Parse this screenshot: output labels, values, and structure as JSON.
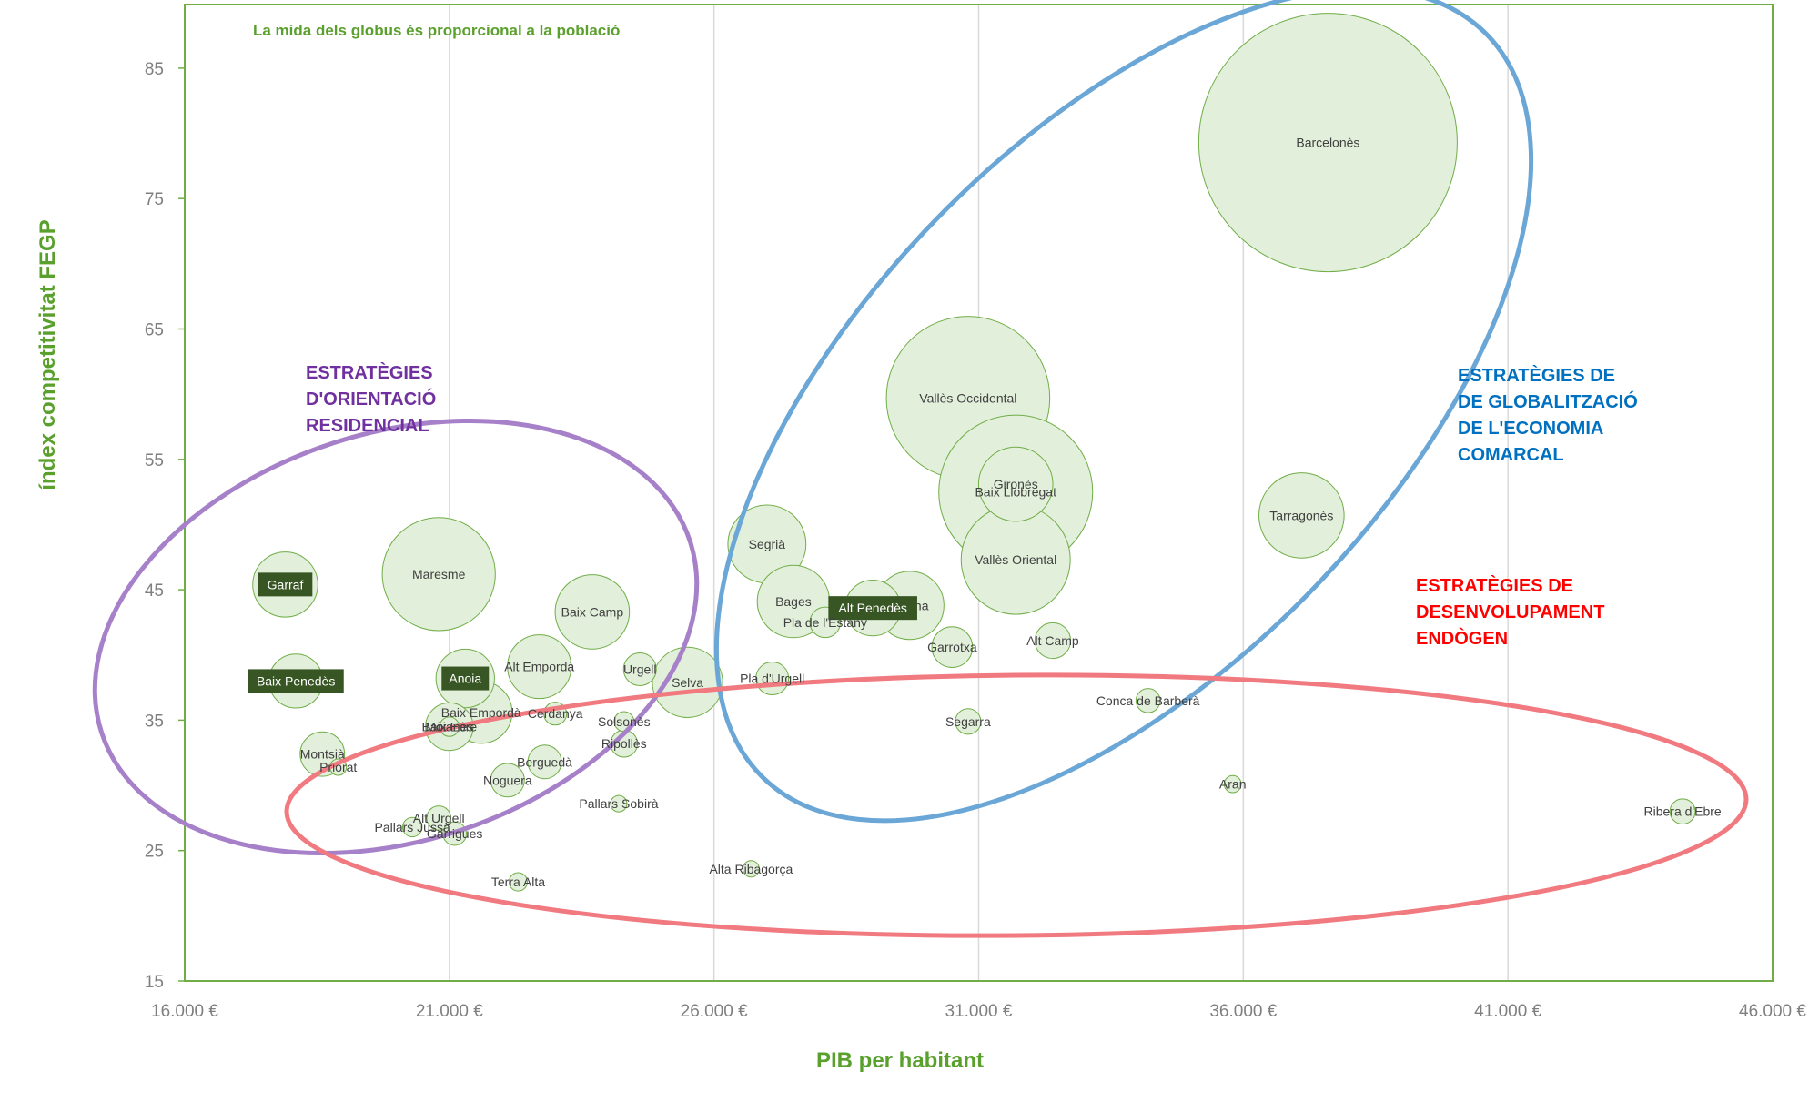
{
  "chart_data": {
    "type": "bubble",
    "note": "La mida dels globus és proporcional a la població",
    "xlabel": "PIB per habitant",
    "ylabel": "índex competitivitat FEGP",
    "xlim": [
      16000,
      46000
    ],
    "ylim": [
      15,
      90
    ],
    "xticks": [
      16000,
      21000,
      26000,
      31000,
      36000,
      41000,
      46000
    ],
    "xtick_labels": [
      "16.000 €",
      "21.000 €",
      "26.000 €",
      "31.000 €",
      "36.000 €",
      "41.000 €",
      "46.000 €"
    ],
    "yticks": [
      15,
      25,
      35,
      45,
      55,
      65,
      75,
      85
    ],
    "ytick_labels": [
      "15",
      "25",
      "35",
      "45",
      "55",
      "65",
      "75",
      "85"
    ],
    "grid": "vertical",
    "colors": {
      "bubble_fill": "#e2efda",
      "bubble_stroke": "#70ad47",
      "highlight_fill": "#375623",
      "axis": "#70ad47",
      "title": "#5aa02c"
    },
    "points": [
      {
        "name": "Barcelonès",
        "x": 37600,
        "y": 79.3,
        "pop": 2300000
      },
      {
        "name": "Vallès Occidental",
        "x": 30800,
        "y": 59.7,
        "pop": 920000
      },
      {
        "name": "Gironès",
        "x": 31700,
        "y": 53.1,
        "pop": 190000
      },
      {
        "name": "Baix Llobregat",
        "x": 31700,
        "y": 52.5,
        "pop": 815000
      },
      {
        "name": "Vallès Oriental",
        "x": 31700,
        "y": 47.3,
        "pop": 410000
      },
      {
        "name": "Tarragonès",
        "x": 37100,
        "y": 50.7,
        "pop": 250000
      },
      {
        "name": "Segrià",
        "x": 27000,
        "y": 48.5,
        "pop": 210000
      },
      {
        "name": "Osona",
        "x": 29700,
        "y": 43.8,
        "pop": 160000
      },
      {
        "name": "Bages",
        "x": 27500,
        "y": 44.1,
        "pop": 180000
      },
      {
        "name": "Alt Penedès",
        "x": 29000,
        "y": 43.6,
        "pop": 107000
      },
      {
        "name": "Pla de l'Estany",
        "x": 28100,
        "y": 42.5,
        "pop": 32000
      },
      {
        "name": "Garrotxa",
        "x": 30500,
        "y": 40.6,
        "pop": 57000
      },
      {
        "name": "Alt Camp",
        "x": 32400,
        "y": 41.1,
        "pop": 44000
      },
      {
        "name": "Pla d'Urgell",
        "x": 27100,
        "y": 38.2,
        "pop": 37000
      },
      {
        "name": "Selva",
        "x": 25500,
        "y": 37.9,
        "pop": 170000
      },
      {
        "name": "Urgell",
        "x": 24600,
        "y": 38.9,
        "pop": 37000
      },
      {
        "name": "Baix Camp",
        "x": 23700,
        "y": 43.3,
        "pop": 190000
      },
      {
        "name": "Alt Empordà",
        "x": 22700,
        "y": 39.1,
        "pop": 140000
      },
      {
        "name": "Garraf",
        "x": 17900,
        "y": 45.4,
        "pop": 146000
      },
      {
        "name": "Maresme",
        "x": 20800,
        "y": 46.2,
        "pop": 440000
      },
      {
        "name": "Baix Penedès",
        "x": 18100,
        "y": 38.0,
        "pop": 100000
      },
      {
        "name": "Anoia",
        "x": 21300,
        "y": 38.2,
        "pop": 118000
      },
      {
        "name": "Baix Empordà",
        "x": 21600,
        "y": 35.6,
        "pop": 132000
      },
      {
        "name": "Baix Ebre",
        "x": 21000,
        "y": 34.5,
        "pop": 78000
      },
      {
        "name": "Cerdanya",
        "x": 23000,
        "y": 35.5,
        "pop": 18000
      },
      {
        "name": "Solsonès",
        "x": 24300,
        "y": 34.9,
        "pop": 13500
      },
      {
        "name": "Ripollès",
        "x": 24300,
        "y": 33.2,
        "pop": 25000
      },
      {
        "name": "Moianès",
        "x": 21000,
        "y": 34.5,
        "pop": 13000
      },
      {
        "name": "Montsià",
        "x": 18600,
        "y": 32.4,
        "pop": 68000
      },
      {
        "name": "Priorat",
        "x": 18900,
        "y": 31.4,
        "pop": 9300
      },
      {
        "name": "Berguedà",
        "x": 22800,
        "y": 31.8,
        "pop": 39000
      },
      {
        "name": "Noguera",
        "x": 22100,
        "y": 30.4,
        "pop": 39000
      },
      {
        "name": "Pallars Sobirà",
        "x": 24200,
        "y": 28.6,
        "pop": 7000
      },
      {
        "name": "Alt Urgell",
        "x": 20800,
        "y": 27.5,
        "pop": 20000
      },
      {
        "name": "Pallars Jussà",
        "x": 20300,
        "y": 26.8,
        "pop": 13000
      },
      {
        "name": "Garrigues",
        "x": 21100,
        "y": 26.3,
        "pop": 19000
      },
      {
        "name": "Terra Alta",
        "x": 22300,
        "y": 22.6,
        "pop": 11500
      },
      {
        "name": "Alta Ribagorça",
        "x": 26700,
        "y": 23.6,
        "pop": 4000
      },
      {
        "name": "Segarra",
        "x": 30800,
        "y": 34.9,
        "pop": 22500
      },
      {
        "name": "Conca de Barberà",
        "x": 34200,
        "y": 36.5,
        "pop": 20000
      },
      {
        "name": "Aran",
        "x": 35800,
        "y": 30.1,
        "pop": 10000
      },
      {
        "name": "Ribera d'Ebre",
        "x": 44300,
        "y": 28.0,
        "pop": 22000
      }
    ],
    "highlighted": [
      "Garraf",
      "Baix Penedès",
      "Anoia",
      "Alt Penedès"
    ],
    "groups": [
      {
        "label": [
          "ESTRATÈGIES",
          "D'ORIENTACIÓ",
          "RESIDENCIAL"
        ],
        "color": "#7030a0",
        "ellipse_color": "#a680c8"
      },
      {
        "label": [
          "ESTRATÈGIES DE",
          "DE GLOBALITZACIÓ",
          "DE L'ECONOMIA",
          "COMARCAL"
        ],
        "color": "#0070c0",
        "ellipse_color": "#6aa6d6"
      },
      {
        "label": [
          "ESTRATÈGIES DE",
          "DESENVOLUPAMENT",
          "ENDÒGEN"
        ],
        "color": "#ff0000",
        "ellipse_color": "#f07a80"
      }
    ]
  }
}
